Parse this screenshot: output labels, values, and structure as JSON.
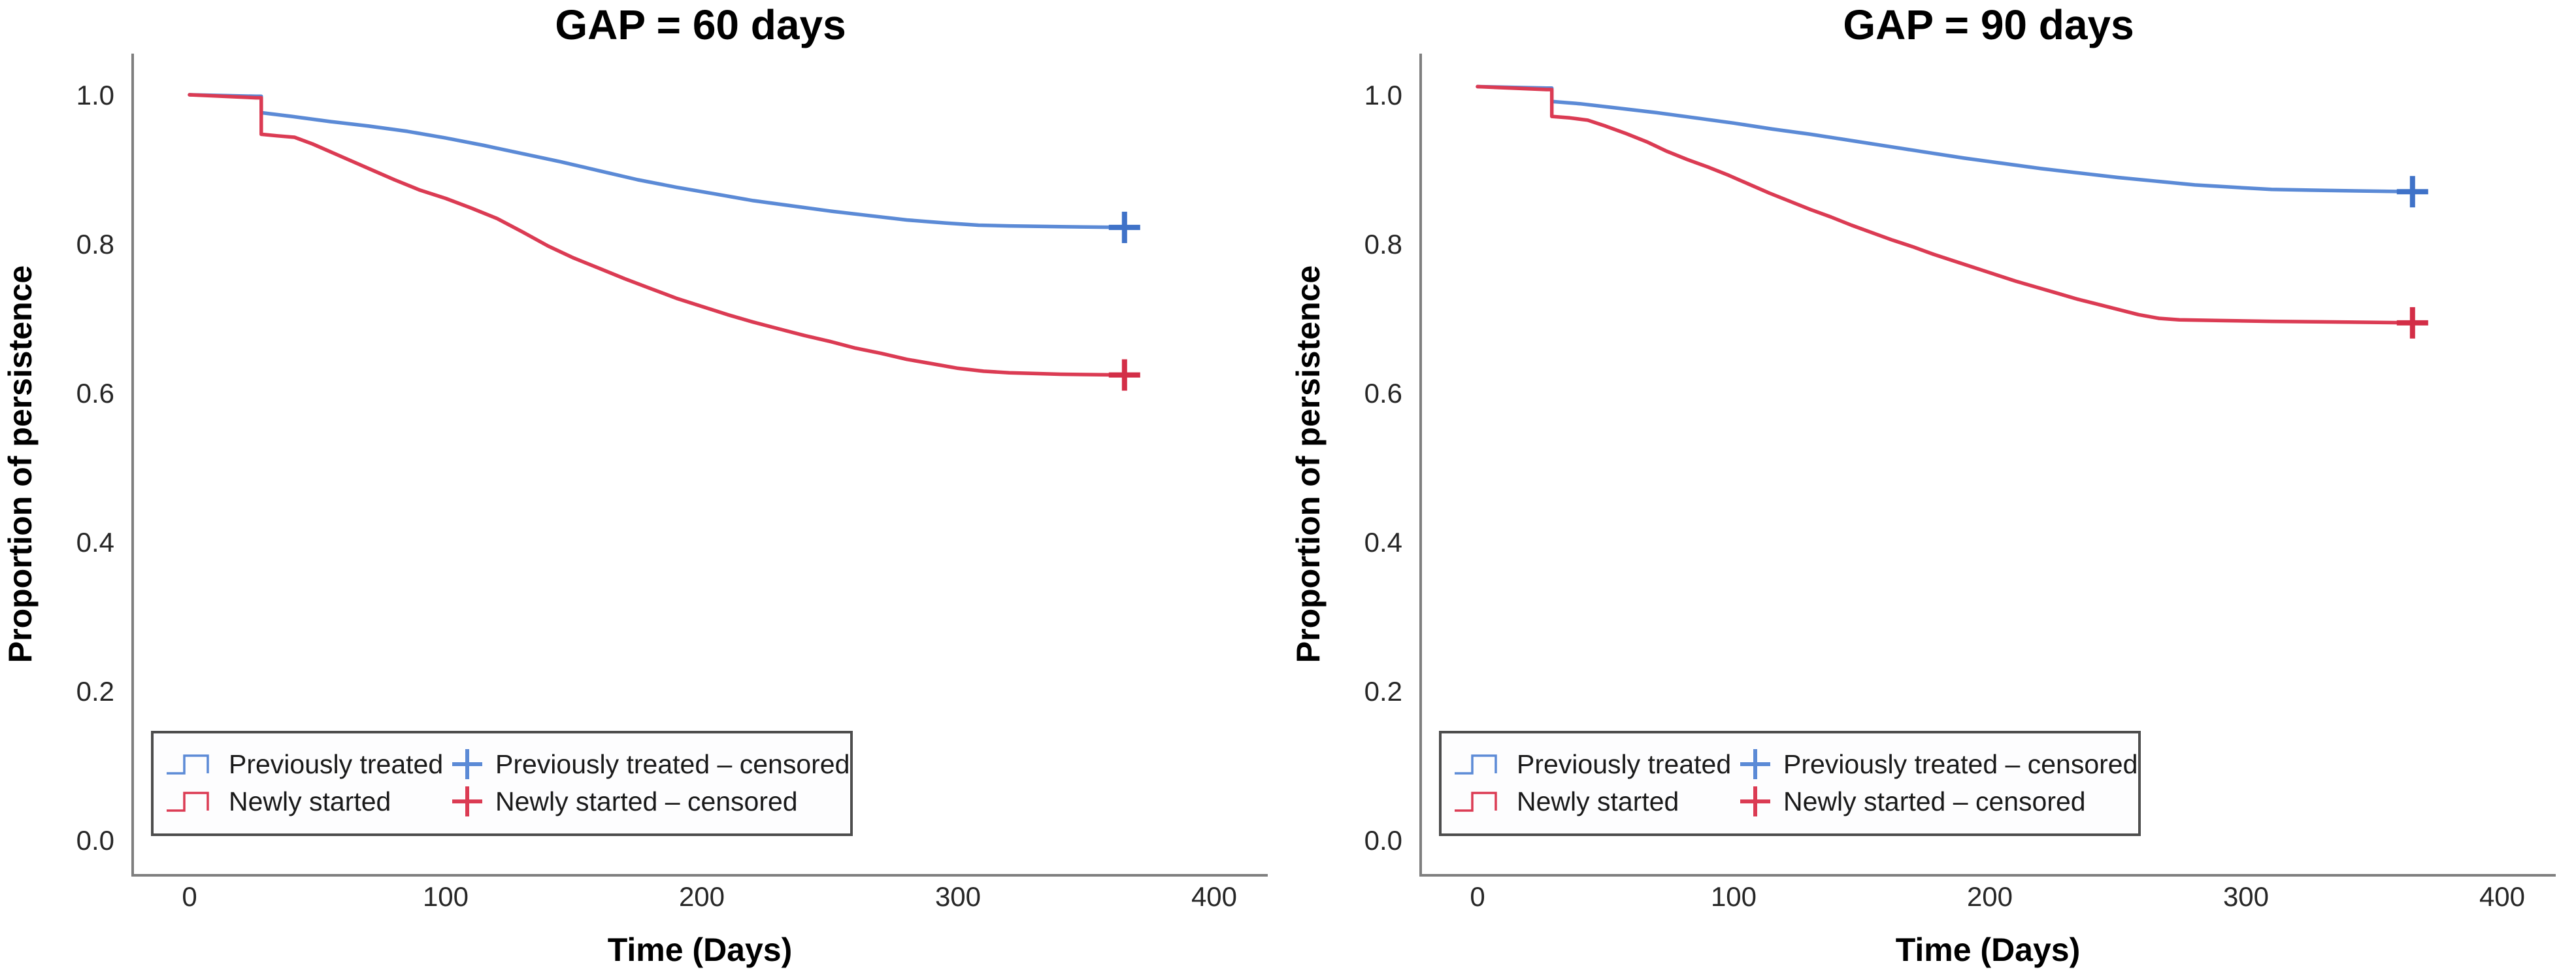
{
  "figure": {
    "background": "#ffffff",
    "axis_color": "#7f7f7f",
    "tick_text_color": "#262626",
    "title_color": "#000000",
    "legend_border_color": "#4d4d4d",
    "legend_fill": "#fdfdfe"
  },
  "chart_data": [
    {
      "type": "line",
      "title": "GAP = 60 days",
      "xlabel": "Time (Days)",
      "ylabel": "Proportion of persistence",
      "xlim": [
        -22,
        421
      ],
      "ylim": [
        -0.05,
        1.055
      ],
      "xticks": [
        "0",
        "100",
        "200",
        "300",
        "400"
      ],
      "xtick_values": [
        0,
        100,
        200,
        300,
        400
      ],
      "yticks": [
        "0.0",
        "0.2",
        "0.4",
        "0.6",
        "0.8",
        "1.0"
      ],
      "ytick_values": [
        0.0,
        0.2,
        0.4,
        0.6,
        0.8,
        1.0
      ],
      "grid": false,
      "legend_position": "lower-left",
      "series": [
        {
          "name": "Previously treated",
          "color": "#5b8ad6",
          "marker_color": "#3f72c8",
          "points": [
            [
              0,
              1.0
            ],
            [
              26,
              0.998
            ],
            [
              28,
              0.998
            ],
            [
              28,
              0.976
            ],
            [
              40,
              0.971
            ],
            [
              55,
              0.964
            ],
            [
              70,
              0.958
            ],
            [
              85,
              0.951
            ],
            [
              100,
              0.942
            ],
            [
              115,
              0.932
            ],
            [
              130,
              0.921
            ],
            [
              145,
              0.91
            ],
            [
              160,
              0.898
            ],
            [
              175,
              0.886
            ],
            [
              190,
              0.876
            ],
            [
              205,
              0.867
            ],
            [
              220,
              0.858
            ],
            [
              235,
              0.851
            ],
            [
              250,
              0.844
            ],
            [
              265,
              0.838
            ],
            [
              280,
              0.832
            ],
            [
              295,
              0.828
            ],
            [
              308,
              0.825
            ],
            [
              320,
              0.824
            ],
            [
              340,
              0.823
            ],
            [
              365,
              0.822
            ]
          ],
          "censored_points": [
            [
              365,
              0.822
            ]
          ]
        },
        {
          "name": "Newly started",
          "color": "#db3b53",
          "marker_color": "#d32e47",
          "points": [
            [
              0,
              1.0
            ],
            [
              26,
              0.996
            ],
            [
              28,
              0.996
            ],
            [
              28,
              0.947
            ],
            [
              34,
              0.945
            ],
            [
              41,
              0.943
            ],
            [
              48,
              0.934
            ],
            [
              56,
              0.922
            ],
            [
              64,
              0.91
            ],
            [
              72,
              0.898
            ],
            [
              80,
              0.886
            ],
            [
              90,
              0.872
            ],
            [
              100,
              0.861
            ],
            [
              110,
              0.848
            ],
            [
              120,
              0.834
            ],
            [
              130,
              0.816
            ],
            [
              140,
              0.797
            ],
            [
              150,
              0.781
            ],
            [
              160,
              0.767
            ],
            [
              170,
              0.753
            ],
            [
              180,
              0.74
            ],
            [
              190,
              0.727
            ],
            [
              200,
              0.716
            ],
            [
              210,
              0.705
            ],
            [
              220,
              0.695
            ],
            [
              230,
              0.686
            ],
            [
              240,
              0.677
            ],
            [
              250,
              0.669
            ],
            [
              260,
              0.66
            ],
            [
              270,
              0.653
            ],
            [
              280,
              0.645
            ],
            [
              290,
              0.639
            ],
            [
              300,
              0.633
            ],
            [
              310,
              0.629
            ],
            [
              320,
              0.627
            ],
            [
              340,
              0.625
            ],
            [
              365,
              0.624
            ]
          ],
          "censored_points": [
            [
              365,
              0.624
            ]
          ]
        }
      ],
      "legend": {
        "items": [
          {
            "label": "Previously treated",
            "censored_label": "Previously treated – censored",
            "color": "#5b8ad6"
          },
          {
            "label": "Newly started",
            "censored_label": "Newly started – censored",
            "color": "#db3b53"
          }
        ]
      }
    },
    {
      "type": "line",
      "title": "GAP = 90 days",
      "xlabel": "Time (Days)",
      "ylabel": "Proportion of persistence",
      "xlim": [
        -22,
        421
      ],
      "ylim": [
        -0.05,
        1.055
      ],
      "xticks": [
        "0",
        "100",
        "200",
        "300",
        "400"
      ],
      "xtick_values": [
        0,
        100,
        200,
        300,
        400
      ],
      "yticks": [
        "0.0",
        "0.2",
        "0.4",
        "0.6",
        "0.8",
        "1.0"
      ],
      "ytick_values": [
        0.0,
        0.2,
        0.4,
        0.6,
        0.8,
        1.0
      ],
      "grid": false,
      "legend_position": "lower-left",
      "series": [
        {
          "name": "Previously treated",
          "color": "#5b8ad6",
          "marker_color": "#3f72c8",
          "points": [
            [
              0,
              1.011
            ],
            [
              27,
              1.009
            ],
            [
              29,
              1.009
            ],
            [
              29,
              0.991
            ],
            [
              40,
              0.988
            ],
            [
              55,
              0.982
            ],
            [
              70,
              0.976
            ],
            [
              85,
              0.969
            ],
            [
              100,
              0.962
            ],
            [
              115,
              0.954
            ],
            [
              130,
              0.947
            ],
            [
              145,
              0.939
            ],
            [
              160,
              0.931
            ],
            [
              175,
              0.923
            ],
            [
              190,
              0.915
            ],
            [
              205,
              0.908
            ],
            [
              220,
              0.901
            ],
            [
              235,
              0.895
            ],
            [
              250,
              0.889
            ],
            [
              265,
              0.884
            ],
            [
              280,
              0.879
            ],
            [
              295,
              0.876
            ],
            [
              310,
              0.873
            ],
            [
              325,
              0.872
            ],
            [
              345,
              0.871
            ],
            [
              365,
              0.87
            ]
          ],
          "censored_points": [
            [
              365,
              0.87
            ]
          ]
        },
        {
          "name": "Newly started",
          "color": "#db3b53",
          "marker_color": "#d32e47",
          "points": [
            [
              0,
              1.011
            ],
            [
              27,
              1.007
            ],
            [
              29,
              1.007
            ],
            [
              29,
              0.971
            ],
            [
              36,
              0.969
            ],
            [
              43,
              0.966
            ],
            [
              50,
              0.958
            ],
            [
              58,
              0.948
            ],
            [
              66,
              0.937
            ],
            [
              74,
              0.924
            ],
            [
              82,
              0.913
            ],
            [
              90,
              0.903
            ],
            [
              98,
              0.892
            ],
            [
              106,
              0.88
            ],
            [
              114,
              0.868
            ],
            [
              122,
              0.857
            ],
            [
              130,
              0.846
            ],
            [
              138,
              0.836
            ],
            [
              146,
              0.825
            ],
            [
              154,
              0.815
            ],
            [
              162,
              0.805
            ],
            [
              170,
              0.796
            ],
            [
              178,
              0.786
            ],
            [
              186,
              0.777
            ],
            [
              194,
              0.768
            ],
            [
              202,
              0.759
            ],
            [
              210,
              0.75
            ],
            [
              218,
              0.742
            ],
            [
              226,
              0.734
            ],
            [
              234,
              0.726
            ],
            [
              242,
              0.719
            ],
            [
              250,
              0.712
            ],
            [
              258,
              0.705
            ],
            [
              266,
              0.7
            ],
            [
              274,
              0.698
            ],
            [
              290,
              0.697
            ],
            [
              310,
              0.696
            ],
            [
              340,
              0.695
            ],
            [
              365,
              0.694
            ]
          ],
          "censored_points": [
            [
              365,
              0.694
            ]
          ]
        }
      ],
      "legend": {
        "items": [
          {
            "label": "Previously treated",
            "censored_label": "Previously treated – censored",
            "color": "#5b8ad6"
          },
          {
            "label": "Newly started",
            "censored_label": "Newly started – censored",
            "color": "#db3b53"
          }
        ]
      }
    }
  ]
}
